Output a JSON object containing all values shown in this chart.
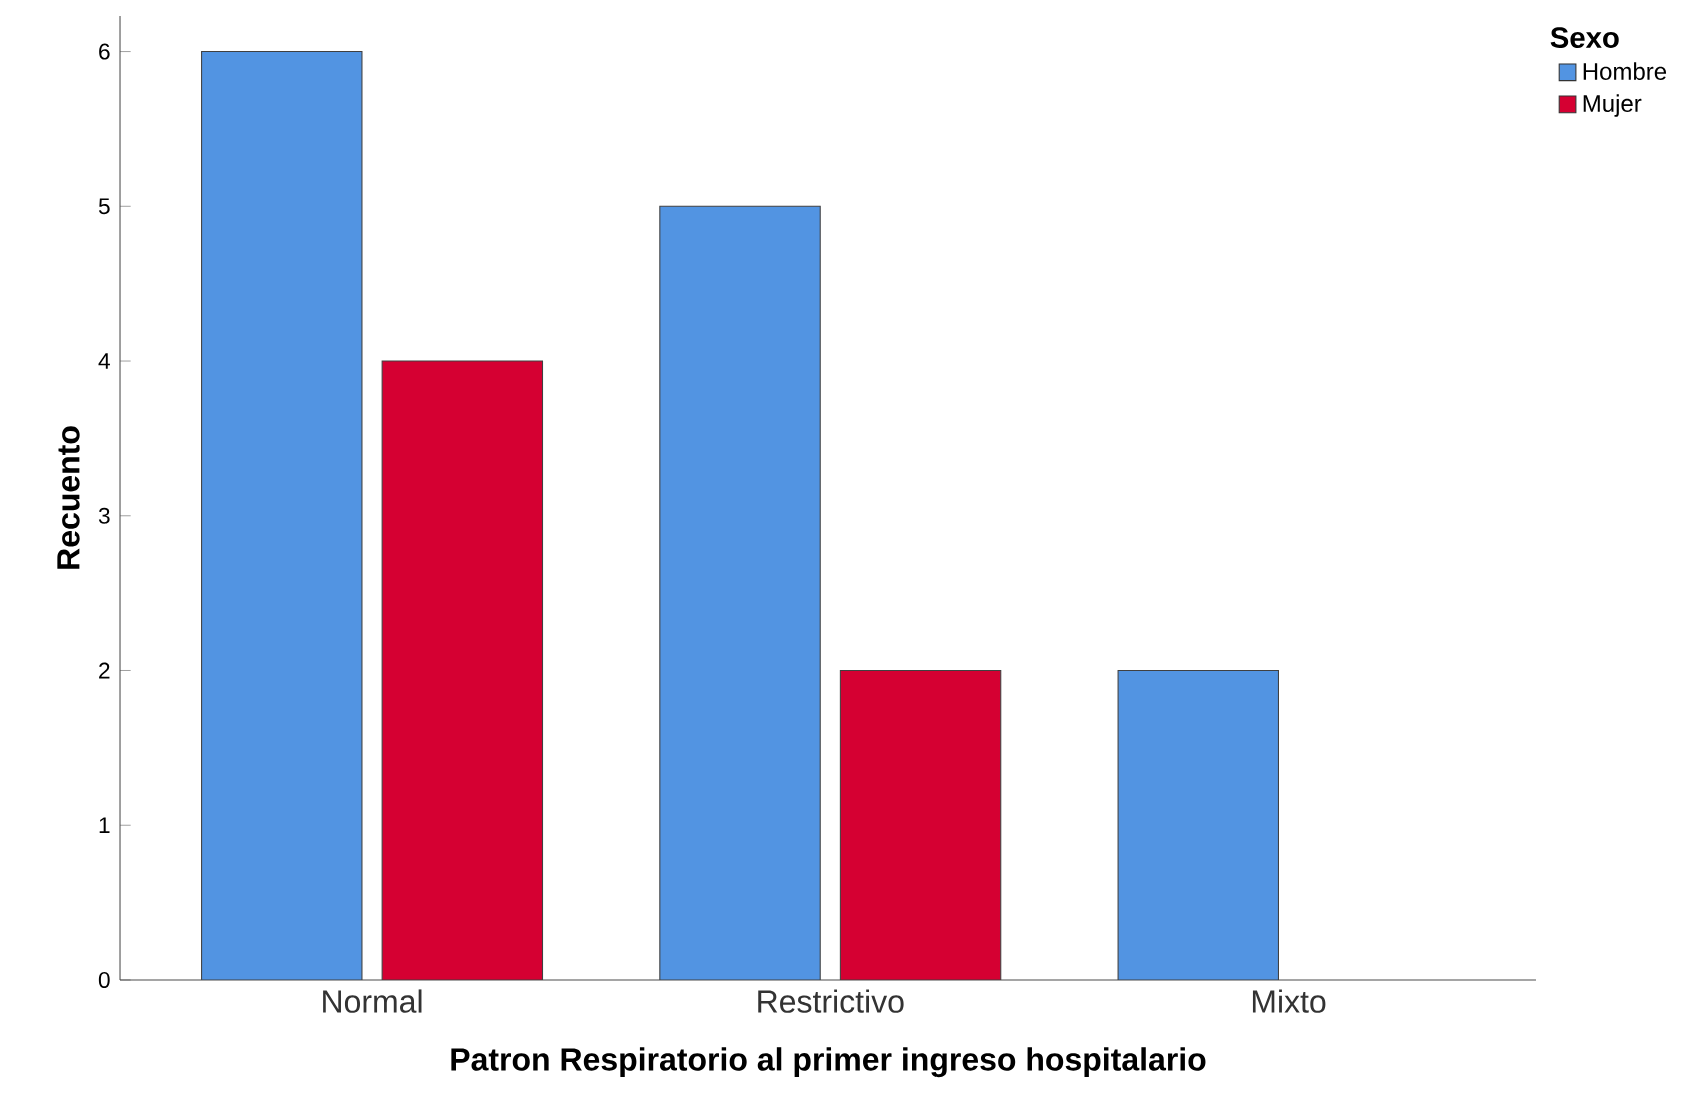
{
  "chart_data": {
    "type": "bar",
    "xlabel": "Patron Respiratorio al primer ingreso hospitalario",
    "ylabel": "Recuento",
    "legend_title": "Sexo",
    "categories": [
      "Normal",
      "Restrictivo",
      "Mixto"
    ],
    "series": [
      {
        "name": "Hombre",
        "color": "#5294e2",
        "values": [
          6,
          5,
          2
        ]
      },
      {
        "name": "Mujer",
        "color": "#d50032",
        "values": [
          4,
          2,
          null
        ]
      }
    ],
    "ylim": [
      0,
      6.23
    ],
    "yticks": [
      0,
      1,
      2,
      3,
      4,
      5,
      6
    ],
    "grid": false,
    "legend": "top right"
  }
}
